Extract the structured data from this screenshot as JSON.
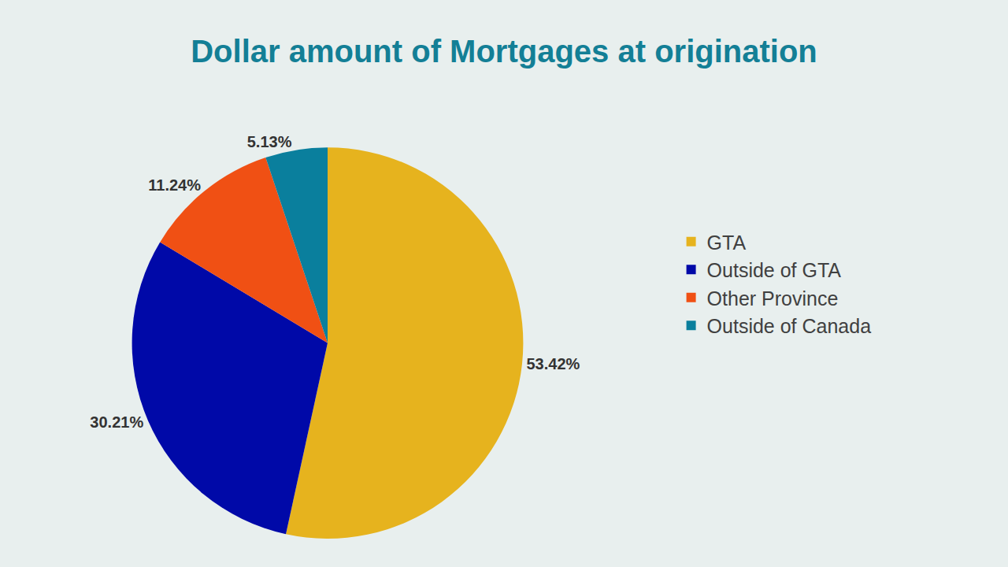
{
  "chart_data": {
    "type": "pie",
    "title": "Dollar amount of Mortgages at origination",
    "categories": [
      "GTA",
      "Outside of GTA",
      "Other Province",
      "Outside of Canada"
    ],
    "values": [
      53.42,
      30.21,
      11.24,
      5.13
    ],
    "value_labels": [
      "53.42%",
      "30.21%",
      "11.24%",
      "5.13%"
    ],
    "colors": [
      "#e6b31e",
      "#0009a8",
      "#f05014",
      "#0a7f9d"
    ],
    "data_labels": true,
    "legend": "right"
  }
}
